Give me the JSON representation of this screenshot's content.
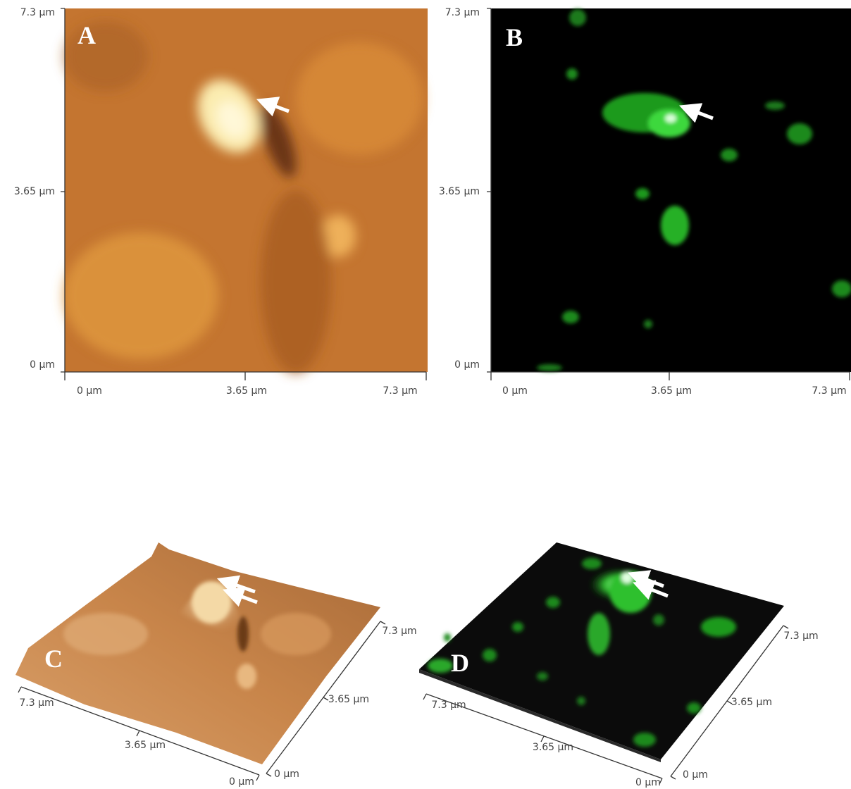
{
  "panels": [
    {
      "label": "A",
      "y_ticks": [
        "7.3 µm",
        "3.65 µm",
        "0 µm"
      ],
      "x_ticks": [
        "0 µm",
        "3.65 µm",
        "7.3 µm"
      ]
    },
    {
      "label": "B",
      "y_ticks": [
        "7.3 µm",
        "3.65 µm",
        "0 µm"
      ],
      "x_ticks": [
        "0 µm",
        "3.65 µm",
        "7.3 µm"
      ]
    },
    {
      "label": "C",
      "front_ticks": [
        "7.3 µm",
        "3.65 µm",
        "0 µm"
      ],
      "side_ticks": [
        "7.3 µm",
        "3.65 µm",
        "0 µm"
      ]
    },
    {
      "label": "D",
      "front_ticks": [
        "7.3 µm",
        "3.65 µm",
        "0 µm"
      ],
      "side_ticks": [
        "7.3 µm",
        "3.65 µm",
        "0 µm"
      ]
    }
  ]
}
